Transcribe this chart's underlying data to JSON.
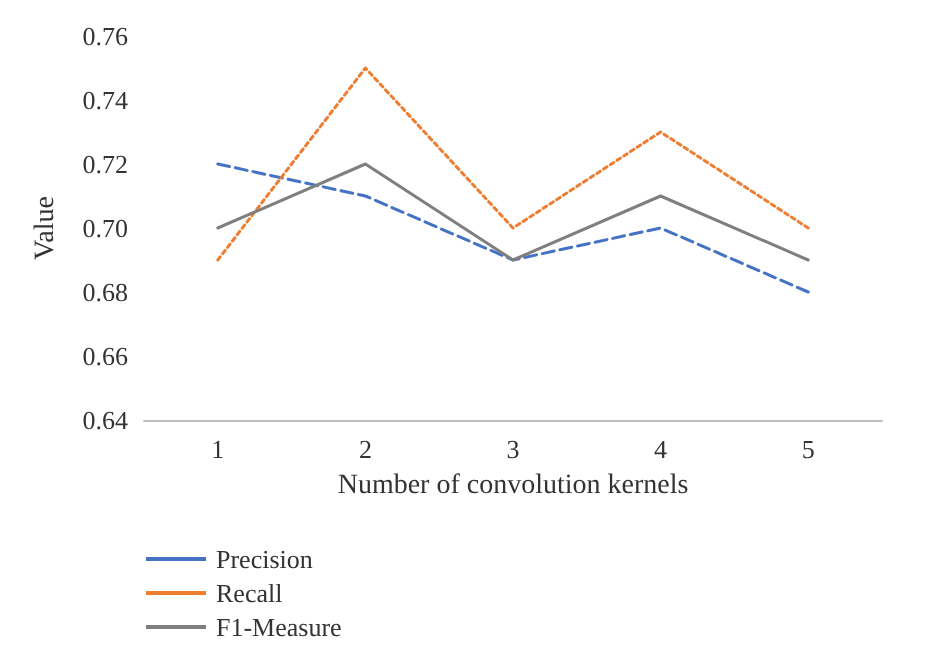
{
  "chart_data": {
    "type": "line",
    "xlabel": "Number of convolution kernels",
    "ylabel": "Value",
    "categories": [
      "1",
      "2",
      "3",
      "4",
      "5"
    ],
    "ylim": [
      0.64,
      0.76
    ],
    "yticks": [
      {
        "value": 0.64,
        "label": "0.64"
      },
      {
        "value": 0.66,
        "label": "0.66"
      },
      {
        "value": 0.68,
        "label": "0.68"
      },
      {
        "value": 0.7,
        "label": "0.70"
      },
      {
        "value": 0.72,
        "label": "0.72"
      },
      {
        "value": 0.74,
        "label": "0.74"
      },
      {
        "value": 0.76,
        "label": "0.76"
      }
    ],
    "grid": false,
    "legend": "bottom left",
    "marker": "none",
    "series": [
      {
        "name": "Precision",
        "color": "#4472c4",
        "line_style": "dashed",
        "values": [
          0.72,
          0.71,
          0.69,
          0.7,
          0.68
        ]
      },
      {
        "name": "Recall",
        "color": "#ed7d31",
        "line_style": "dotted",
        "values": [
          0.69,
          0.75,
          0.7,
          0.73,
          0.7
        ]
      },
      {
        "name": "F1-Measure",
        "color": "#7f7f7f",
        "line_style": "solid",
        "values": [
          0.7,
          0.72,
          0.69,
          0.71,
          0.69
        ]
      }
    ]
  }
}
